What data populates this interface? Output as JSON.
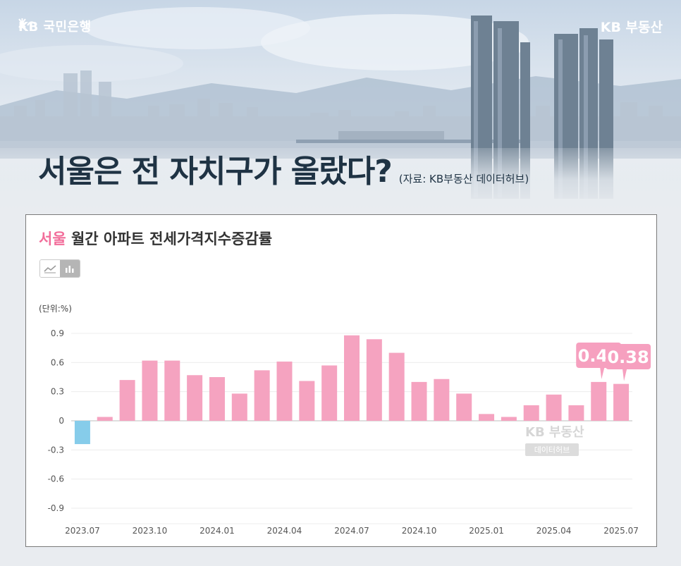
{
  "header": {
    "bank_logo": "KB 국민은행",
    "brand_logo": "KB 부동산",
    "title": "서울은 전 자치구가 올랐다?",
    "source": "(자료: KB부동산 데이터허브)"
  },
  "card": {
    "title_accent": "서울",
    "title_rest": " 월간 아파트 전세가격지수증감률",
    "unit": "(단위:%)",
    "watermark": "KB 부동산",
    "watermark_sub": "데이터허브",
    "toggle": [
      "line-chart-icon",
      "bar-chart-icon"
    ]
  },
  "colors": {
    "positive": "#f5a3c0",
    "negative": "#86ccea",
    "callout": "#f6a0bf",
    "accent": "#f26d9a"
  },
  "chart_data": {
    "type": "bar",
    "ylabel": "(단위:%)",
    "ylim": [
      -0.9,
      0.9
    ],
    "yticks": [
      "0.9",
      "0.6",
      "0.3",
      "0",
      "-0.3",
      "-0.6",
      "-0.9"
    ],
    "xtick_labels": [
      "2023.07",
      "2023.10",
      "2024.01",
      "2024.04",
      "2024.07",
      "2024.10",
      "2025.01",
      "2025.04",
      "2025.07"
    ],
    "categories": [
      "2023.07",
      "2023.08",
      "2023.09",
      "2023.10",
      "2023.11",
      "2023.12",
      "2024.01",
      "2024.02",
      "2024.03",
      "2024.04",
      "2024.05",
      "2024.06",
      "2024.07",
      "2024.08",
      "2024.09",
      "2024.10",
      "2024.11",
      "2024.12",
      "2025.01",
      "2025.02",
      "2025.03",
      "2025.04",
      "2025.05",
      "2025.06",
      "2025.07"
    ],
    "values": [
      -0.24,
      0.04,
      0.42,
      0.62,
      0.62,
      0.47,
      0.45,
      0.28,
      0.52,
      0.61,
      0.41,
      0.57,
      0.88,
      0.84,
      0.7,
      0.4,
      0.43,
      0.28,
      0.07,
      0.04,
      0.16,
      0.27,
      0.16,
      0.4,
      0.38
    ],
    "callouts": [
      {
        "category": "2025.06",
        "label": "0.40"
      },
      {
        "category": "2025.07",
        "label": "0.38"
      }
    ]
  }
}
